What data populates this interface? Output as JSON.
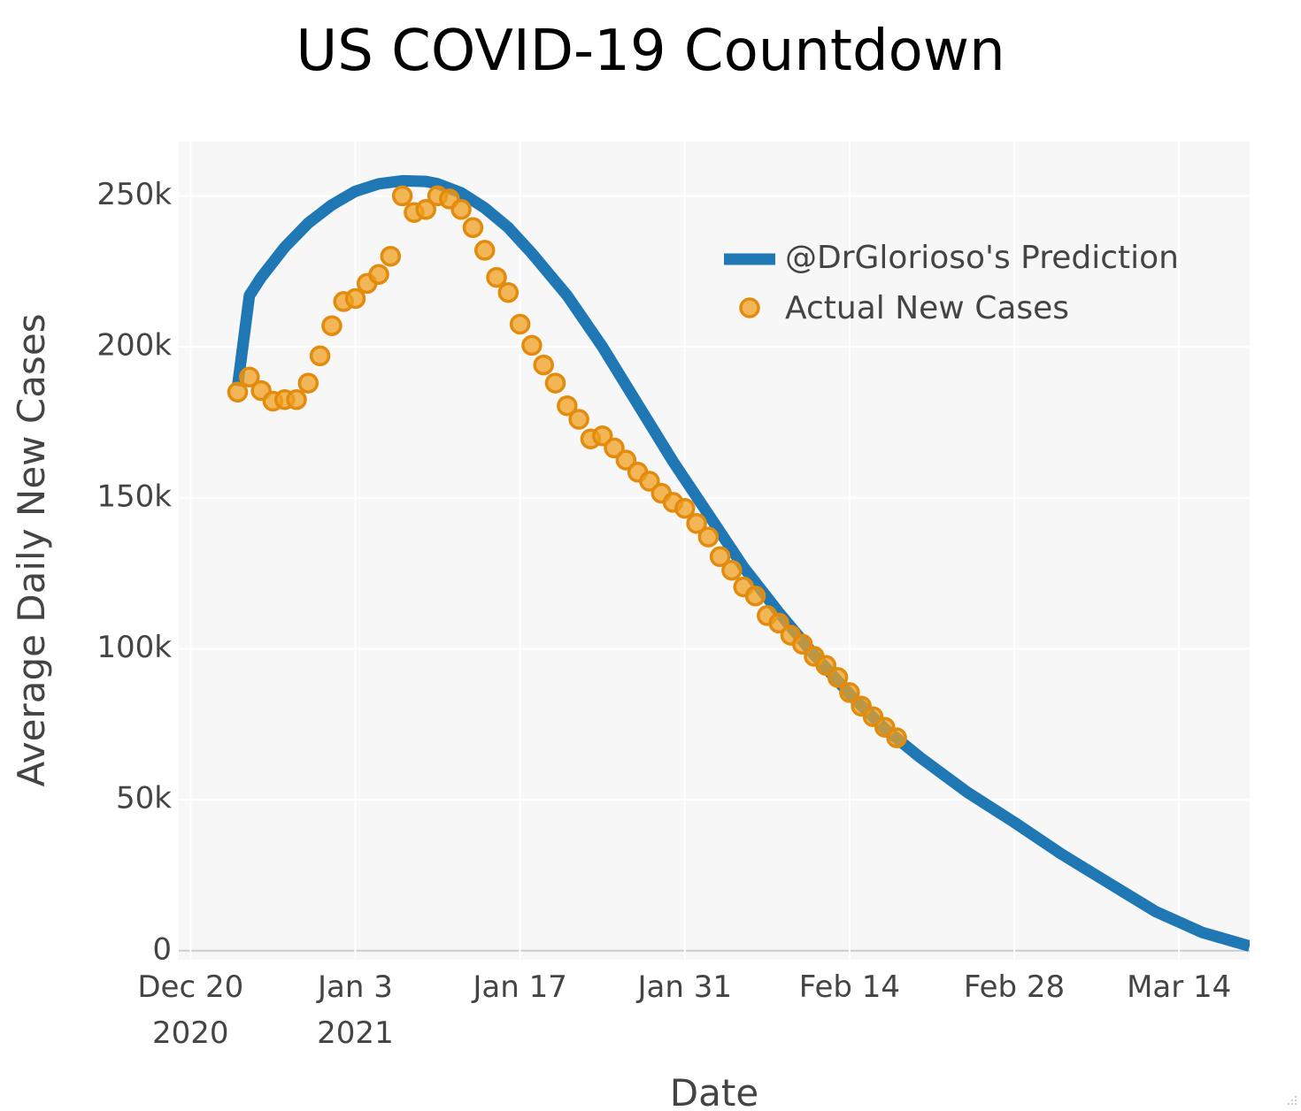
{
  "chart_data": {
    "type": "line",
    "title": "US COVID-19 Countdown",
    "xlabel": "Date",
    "ylabel": "Average Daily New Cases",
    "xlim": [
      "2020-12-19",
      "2021-03-20"
    ],
    "ylim": [
      -3000,
      268000
    ],
    "grid": true,
    "legend_position": "top-right",
    "x_ticks": [
      {
        "date": "2020-12-20",
        "line1": "Dec 20",
        "line2": "2020"
      },
      {
        "date": "2021-01-03",
        "line1": "Jan 3",
        "line2": "2021"
      },
      {
        "date": "2021-01-17",
        "line1": "Jan 17",
        "line2": ""
      },
      {
        "date": "2021-01-31",
        "line1": "Jan 31",
        "line2": ""
      },
      {
        "date": "2021-02-14",
        "line1": "Feb 14",
        "line2": ""
      },
      {
        "date": "2021-02-28",
        "line1": "Feb 28",
        "line2": ""
      },
      {
        "date": "2021-03-14",
        "line1": "Mar 14",
        "line2": ""
      }
    ],
    "y_ticks": [
      {
        "value": 0,
        "label": "0"
      },
      {
        "value": 50000,
        "label": "50k"
      },
      {
        "value": 100000,
        "label": "100k"
      },
      {
        "value": 150000,
        "label": "150k"
      },
      {
        "value": 200000,
        "label": "200k"
      },
      {
        "value": 250000,
        "label": "250k"
      }
    ],
    "series": [
      {
        "name": "@DrGlorioso's Prediction",
        "kind": "line",
        "color": "#1f77b4",
        "points": [
          [
            "2020-12-24",
            187000
          ],
          [
            "2020-12-25",
            217000
          ],
          [
            "2020-12-26",
            223000
          ],
          [
            "2020-12-28",
            233000
          ],
          [
            "2020-12-30",
            241000
          ],
          [
            "2021-01-01",
            247000
          ],
          [
            "2021-01-03",
            251500
          ],
          [
            "2021-01-05",
            254000
          ],
          [
            "2021-01-07",
            255000
          ],
          [
            "2021-01-09",
            254800
          ],
          [
            "2021-01-10",
            254000
          ],
          [
            "2021-01-12",
            251000
          ],
          [
            "2021-01-14",
            246000
          ],
          [
            "2021-01-16",
            239500
          ],
          [
            "2021-01-18",
            231000
          ],
          [
            "2021-01-21",
            217000
          ],
          [
            "2021-01-24",
            200000
          ],
          [
            "2021-01-27",
            181000
          ],
          [
            "2021-01-30",
            162000
          ],
          [
            "2021-02-02",
            144500
          ],
          [
            "2021-02-05",
            127000
          ],
          [
            "2021-02-08",
            112000
          ],
          [
            "2021-02-11",
            98000
          ],
          [
            "2021-02-14",
            85000
          ],
          [
            "2021-02-17",
            73500
          ],
          [
            "2021-02-20",
            64000
          ],
          [
            "2021-02-24",
            52500
          ],
          [
            "2021-02-28",
            42500
          ],
          [
            "2021-03-04",
            32000
          ],
          [
            "2021-03-08",
            22500
          ],
          [
            "2021-03-12",
            13000
          ],
          [
            "2021-03-16",
            6000
          ],
          [
            "2021-03-20",
            1500
          ]
        ]
      },
      {
        "name": "Actual New Cases",
        "kind": "markers",
        "color": "#f0a020",
        "edge_color": "#e38b0c",
        "points": [
          [
            "2020-12-24",
            185000
          ],
          [
            "2020-12-25",
            190000
          ],
          [
            "2020-12-26",
            185500
          ],
          [
            "2020-12-27",
            182000
          ],
          [
            "2020-12-28",
            182500
          ],
          [
            "2020-12-29",
            182500
          ],
          [
            "2020-12-30",
            188000
          ],
          [
            "2020-12-31",
            197000
          ],
          [
            "2021-01-01",
            207000
          ],
          [
            "2021-01-02",
            215000
          ],
          [
            "2021-01-03",
            216000
          ],
          [
            "2021-01-04",
            221000
          ],
          [
            "2021-01-05",
            224000
          ],
          [
            "2021-01-06",
            230000
          ],
          [
            "2021-01-07",
            250000
          ],
          [
            "2021-01-08",
            244500
          ],
          [
            "2021-01-09",
            245500
          ],
          [
            "2021-01-10",
            250000
          ],
          [
            "2021-01-11",
            249000
          ],
          [
            "2021-01-12",
            245500
          ],
          [
            "2021-01-13",
            239500
          ],
          [
            "2021-01-14",
            232000
          ],
          [
            "2021-01-15",
            223000
          ],
          [
            "2021-01-16",
            218000
          ],
          [
            "2021-01-17",
            207500
          ],
          [
            "2021-01-18",
            200500
          ],
          [
            "2021-01-19",
            194000
          ],
          [
            "2021-01-20",
            188000
          ],
          [
            "2021-01-21",
            180500
          ],
          [
            "2021-01-22",
            176000
          ],
          [
            "2021-01-23",
            169500
          ],
          [
            "2021-01-24",
            170500
          ],
          [
            "2021-01-25",
            166500
          ],
          [
            "2021-01-26",
            162500
          ],
          [
            "2021-01-27",
            158500
          ],
          [
            "2021-01-28",
            155500
          ],
          [
            "2021-01-29",
            151500
          ],
          [
            "2021-01-30",
            148500
          ],
          [
            "2021-01-31",
            146500
          ],
          [
            "2021-02-01",
            141500
          ],
          [
            "2021-02-02",
            137000
          ],
          [
            "2021-02-03",
            130500
          ],
          [
            "2021-02-04",
            126000
          ],
          [
            "2021-02-05",
            120500
          ],
          [
            "2021-02-06",
            117500
          ],
          [
            "2021-02-07",
            111000
          ],
          [
            "2021-02-08",
            108500
          ],
          [
            "2021-02-09",
            104500
          ],
          [
            "2021-02-10",
            101500
          ],
          [
            "2021-02-11",
            97500
          ],
          [
            "2021-02-12",
            94500
          ],
          [
            "2021-02-13",
            90500
          ],
          [
            "2021-02-14",
            85500
          ],
          [
            "2021-02-15",
            81000
          ],
          [
            "2021-02-16",
            77500
          ],
          [
            "2021-02-17",
            74000
          ],
          [
            "2021-02-18",
            70500
          ]
        ]
      }
    ]
  }
}
